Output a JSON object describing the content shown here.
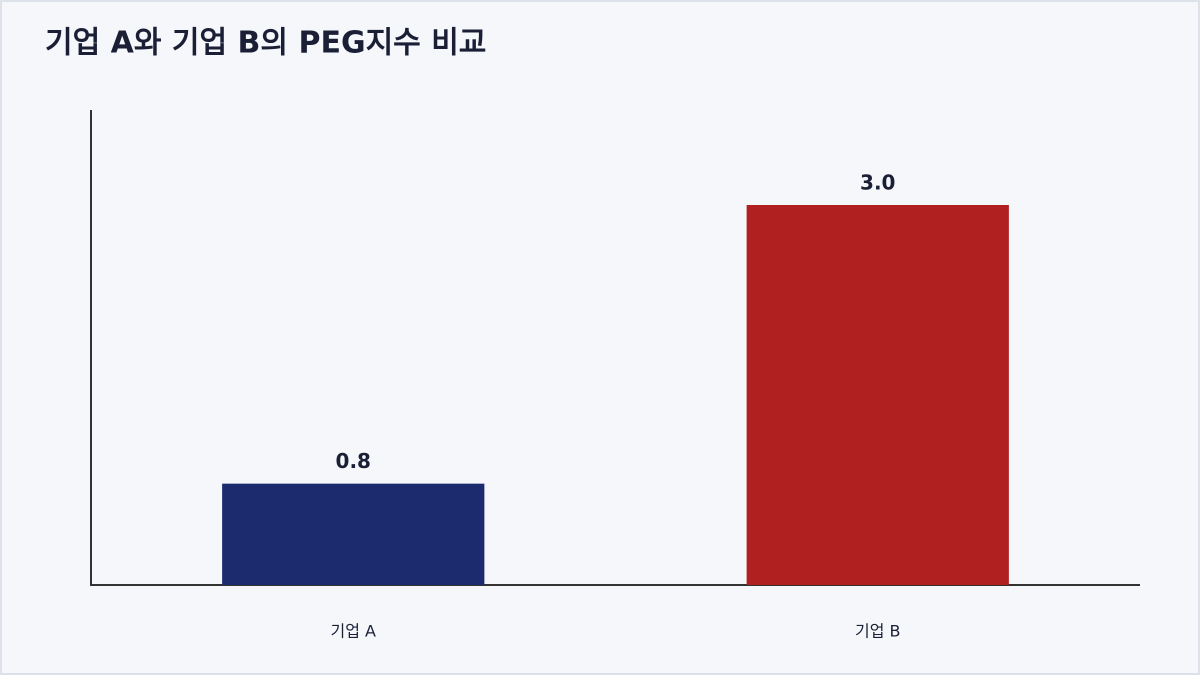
{
  "chart_data": {
    "type": "bar",
    "title": "기업 A와 기업 B의 PEG지수 비교",
    "categories": [
      "기업 A",
      "기업 B"
    ],
    "values": [
      0.8,
      3.0
    ],
    "value_labels": [
      "0.8",
      "3.0"
    ],
    "colors": [
      "#1c2a6e",
      "#b02020"
    ],
    "ylim": [
      0,
      3.75
    ]
  }
}
